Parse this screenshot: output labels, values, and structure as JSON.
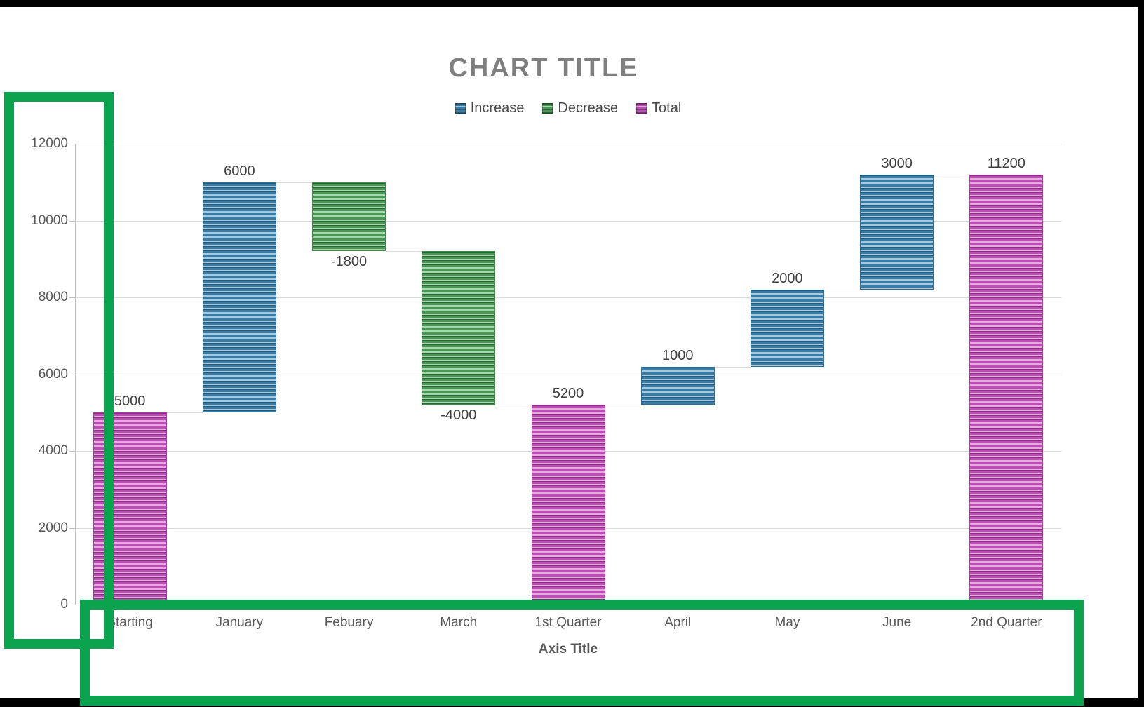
{
  "title": "CHART TITLE",
  "axis_title": "Axis Title",
  "legend": [
    {
      "label": "Increase",
      "series": "Increase",
      "color": "#3A7BA3",
      "style": "blue"
    },
    {
      "label": "Decrease",
      "series": "Decrease",
      "color": "#4A9655",
      "style": "green"
    },
    {
      "label": "Total",
      "series": "Total",
      "color": "#BB4EB2",
      "style": "magenta"
    }
  ],
  "annotations": {
    "highlight_color": "#0BA34D",
    "boxes": [
      {
        "name": "y-axis-region",
        "description": "green rectangle around vertical axis labels"
      },
      {
        "name": "x-axis-region",
        "description": "green rectangle around category axis labels and axis title"
      }
    ]
  },
  "chart_data": {
    "type": "bar",
    "subtype": "waterfall",
    "title": "CHART TITLE",
    "xlabel": "Axis Title",
    "ylabel": "",
    "ylim": [
      0,
      12000
    ],
    "yticks": [
      0,
      2000,
      4000,
      6000,
      8000,
      10000,
      12000
    ],
    "grid": "horizontal",
    "legend_position": "top",
    "categories": [
      "Starting",
      "January",
      "Febuary",
      "March",
      "1st Quarter",
      "April",
      "May",
      "June",
      "2nd Quarter"
    ],
    "series_names": [
      "Increase",
      "Decrease",
      "Total"
    ],
    "bars": [
      {
        "category": "Starting",
        "series": "Total",
        "start": 0,
        "end": 5000,
        "label": "5000",
        "label_position": "above"
      },
      {
        "category": "January",
        "series": "Increase",
        "start": 5000,
        "end": 11000,
        "label": "6000",
        "label_position": "above"
      },
      {
        "category": "Febuary",
        "series": "Decrease",
        "start": 11000,
        "end": 9200,
        "label": "-1800",
        "label_position": "below"
      },
      {
        "category": "March",
        "series": "Decrease",
        "start": 9200,
        "end": 5200,
        "label": "-4000",
        "label_position": "below"
      },
      {
        "category": "1st Quarter",
        "series": "Total",
        "start": 0,
        "end": 5200,
        "label": "5200",
        "label_position": "above"
      },
      {
        "category": "April",
        "series": "Increase",
        "start": 5200,
        "end": 6200,
        "label": "1000",
        "label_position": "above"
      },
      {
        "category": "May",
        "series": "Increase",
        "start": 6200,
        "end": 8200,
        "label": "2000",
        "label_position": "above"
      },
      {
        "category": "June",
        "series": "Increase",
        "start": 8200,
        "end": 11200,
        "label": "3000",
        "label_position": "above"
      },
      {
        "category": "2nd Quarter",
        "series": "Total",
        "start": 0,
        "end": 11200,
        "label": "11200",
        "label_position": "above"
      }
    ]
  }
}
